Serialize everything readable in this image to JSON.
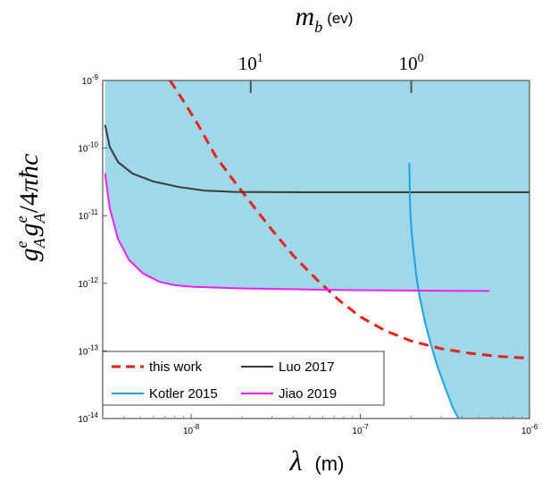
{
  "chart_data": {
    "type": "line",
    "x_scale": "log",
    "y_scale": "log",
    "xlabel": {
      "symbol": "λ",
      "unit": "(m)"
    },
    "ylabel": {
      "text": "g_A^e g_A^e / 4πħc"
    },
    "top_axis_label": {
      "symbol": "m",
      "subscript": "b",
      "unit": "(ev)"
    },
    "xlim": [
      3e-09,
      1e-06
    ],
    "ylim": [
      1e-14,
      1e-09
    ],
    "x_ticks": [
      {
        "value": 1e-08,
        "base": "10",
        "exp": "-8"
      },
      {
        "value": 1e-07,
        "base": "10",
        "exp": "-7"
      },
      {
        "value": 1e-06,
        "base": "10",
        "exp": "-6"
      }
    ],
    "y_ticks": [
      {
        "value": 1e-09,
        "base": "10",
        "exp": "-9"
      },
      {
        "value": 1e-10,
        "base": "10",
        "exp": "-10"
      },
      {
        "value": 1e-11,
        "base": "10",
        "exp": "-11"
      },
      {
        "value": 1e-12,
        "base": "10",
        "exp": "-12"
      },
      {
        "value": 1e-13,
        "base": "10",
        "exp": "-13"
      },
      {
        "value": 1e-14,
        "base": "10",
        "exp": "-14"
      }
    ],
    "top_ticks": [
      {
        "label_base": "10",
        "label_exp": "1",
        "x_value": 2.25e-08
      },
      {
        "label_base": "10",
        "label_exp": "0",
        "x_value": 2e-07
      }
    ],
    "excluded_fill": "#9fd8e8",
    "series": [
      {
        "name": "this work",
        "color": "#e8211b",
        "style": "dashed",
        "x": [
          7.5e-09,
          9e-09,
          1.1e-08,
          1.4e-08,
          1.8e-08,
          2.3e-08,
          3e-08,
          4e-08,
          5.5e-08,
          7.5e-08,
          1e-07,
          1.4e-07,
          2e-07,
          3e-07,
          4.5e-07,
          6.5e-07,
          1e-06
        ],
        "y": [
          1e-09,
          5e-10,
          2.2e-10,
          7.5e-11,
          3.2e-11,
          1.45e-11,
          6.2e-12,
          2.6e-12,
          1.15e-12,
          5.6e-13,
          3.2e-13,
          2e-13,
          1.4e-13,
          1.08e-13,
          9.2e-14,
          8.3e-14,
          7.8e-14
        ]
      },
      {
        "name": "Luo 2017",
        "color": "#3a3a3a",
        "style": "solid",
        "x": [
          3.1e-09,
          3.3e-09,
          3.7e-09,
          4.5e-09,
          6e-09,
          8.5e-09,
          1.2e-08,
          1.8e-08,
          5e-08,
          2e-07,
          1e-06
        ],
        "y": [
          2.2e-10,
          1.05e-10,
          6.2e-11,
          4.2e-11,
          3.2e-11,
          2.65e-11,
          2.35e-11,
          2.25e-11,
          2.22e-11,
          2.22e-11,
          2.22e-11
        ]
      },
      {
        "name": "Kotler 2015",
        "color": "#1ea3e0",
        "style": "solid",
        "x": [
          1.95e-07,
          1.96e-07,
          1.98e-07,
          2.02e-07,
          2.08e-07,
          2.15e-07,
          2.25e-07,
          2.4e-07,
          2.6e-07,
          2.85e-07,
          3.15e-07,
          3.5e-07,
          3.8e-07
        ],
        "y": [
          6e-11,
          2e-11,
          1e-11,
          5e-12,
          2.5e-12,
          1.2e-12,
          6e-13,
          2.8e-13,
          1.3e-13,
          6e-14,
          3e-14,
          1.5e-14,
          1e-14
        ]
      },
      {
        "name": "Jiao 2019",
        "color": "#f21ef0",
        "style": "solid",
        "x": [
          3.1e-09,
          3.3e-09,
          3.7e-09,
          4.3e-09,
          5.2e-09,
          6.5e-09,
          8e-09,
          1e-08,
          2e-08,
          5e-08,
          1e-07,
          3e-07,
          5.8e-07
        ],
        "y": [
          4.2e-11,
          1.3e-11,
          4.5e-12,
          2.2e-12,
          1.4e-12,
          1.05e-12,
          9.4e-13,
          8.9e-13,
          8.4e-13,
          8.1e-13,
          7.9e-13,
          7.75e-13,
          7.7e-13
        ]
      }
    ],
    "legend": {
      "position": "bottom-left",
      "entries": [
        "this work",
        "Luo 2017",
        "Kotler 2015",
        "Jiao 2019"
      ]
    }
  }
}
